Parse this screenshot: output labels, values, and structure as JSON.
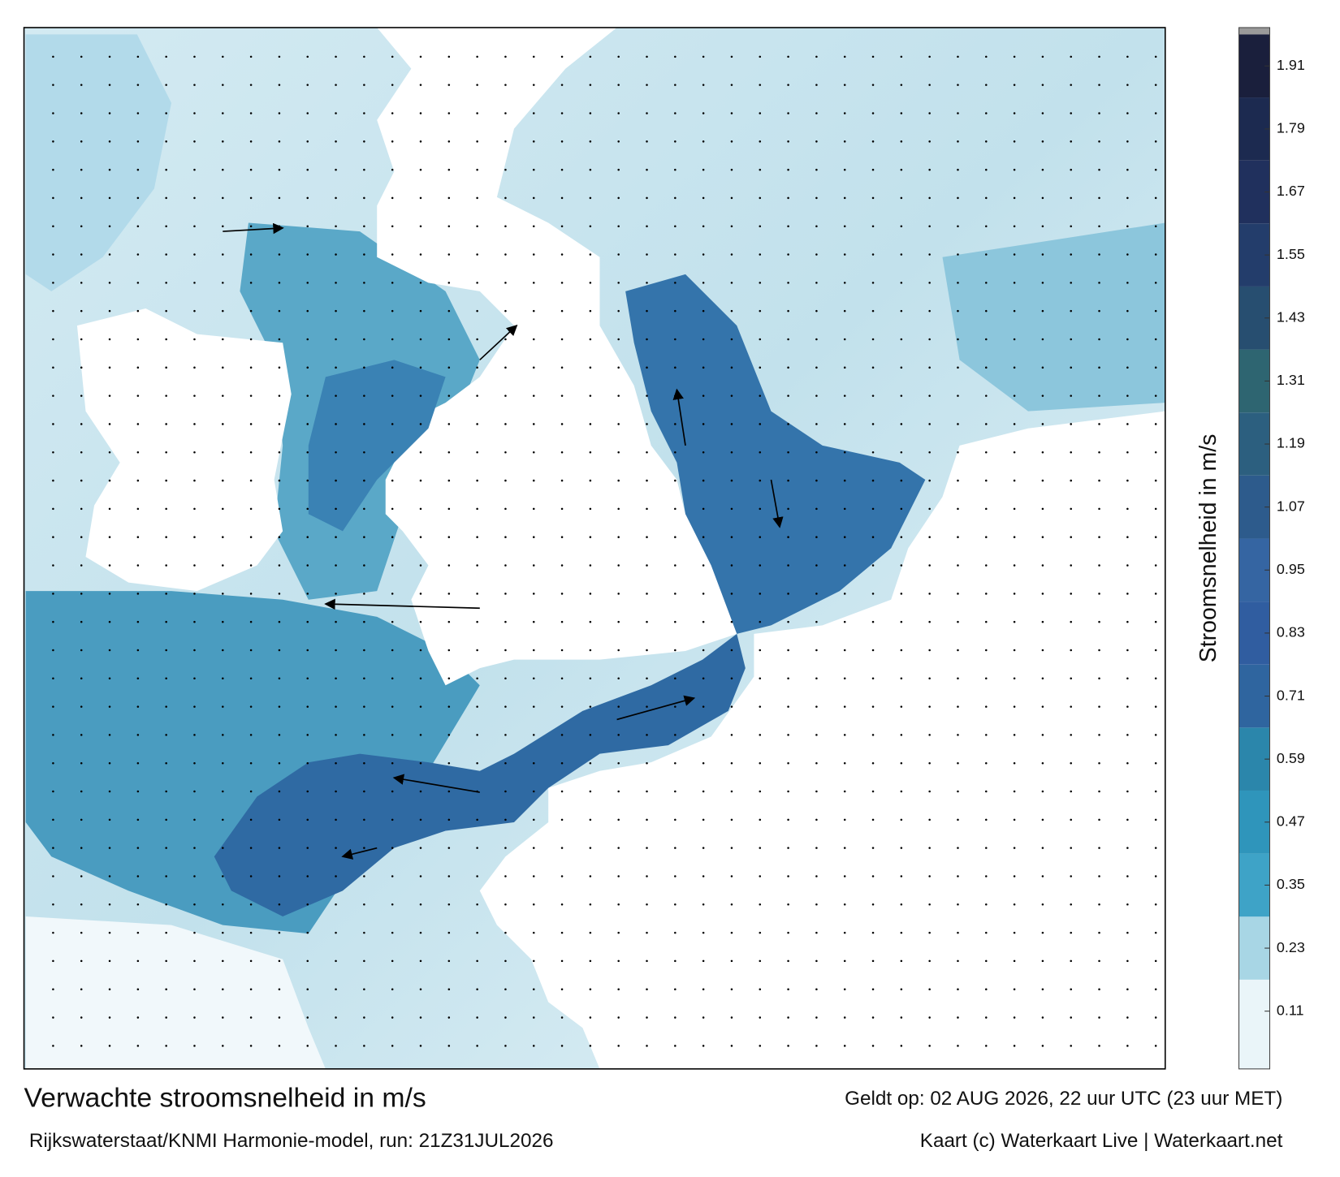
{
  "header": {
    "title": "Verwachte stroomsnelheid in m/s",
    "subtitle": "Rijkswaterstaat/KNMI Harmonie-model, run: 21Z31JUL2026",
    "valid_time": "Geldt op: 02 AUG 2026, 22 uur UTC (23 uur MET)",
    "credit": "Kaart (c) Waterkaart Live | Waterkaart.net"
  },
  "colorbar": {
    "type": "colorbar",
    "label": "Stroomsnelheid in m/s",
    "ylim": [
      0,
      1.97
    ],
    "yticks": [
      0.11,
      0.23,
      0.35,
      0.47,
      0.59,
      0.71,
      0.83,
      0.95,
      1.07,
      1.19,
      1.31,
      1.43,
      1.55,
      1.67,
      1.79,
      1.91
    ],
    "bands": [
      {
        "from": 0,
        "to": 0.17,
        "color": "#eaf5f9"
      },
      {
        "from": 0.17,
        "to": 0.29,
        "color": "#a8d6e5"
      },
      {
        "from": 0.29,
        "to": 0.41,
        "color": "#3ea3c7"
      },
      {
        "from": 0.41,
        "to": 0.53,
        "color": "#2f95bb"
      },
      {
        "from": 0.53,
        "to": 0.65,
        "color": "#2b86ab"
      },
      {
        "from": 0.65,
        "to": 0.77,
        "color": "#2f659f"
      },
      {
        "from": 0.77,
        "to": 0.89,
        "color": "#305da0"
      },
      {
        "from": 0.89,
        "to": 1.01,
        "color": "#3565a2"
      },
      {
        "from": 1.01,
        "to": 1.13,
        "color": "#2d5b8c"
      },
      {
        "from": 1.13,
        "to": 1.25,
        "color": "#2c5f7f"
      },
      {
        "from": 1.25,
        "to": 1.37,
        "color": "#2e6571"
      },
      {
        "from": 1.37,
        "to": 1.49,
        "color": "#274e70"
      },
      {
        "from": 1.49,
        "to": 1.61,
        "color": "#233d6b"
      },
      {
        "from": 1.61,
        "to": 1.73,
        "color": "#20305d"
      },
      {
        "from": 1.73,
        "to": 1.85,
        "color": "#1c2a50"
      },
      {
        "from": 1.85,
        "to": 1.97,
        "color": "#1a1f3c"
      }
    ]
  }
}
